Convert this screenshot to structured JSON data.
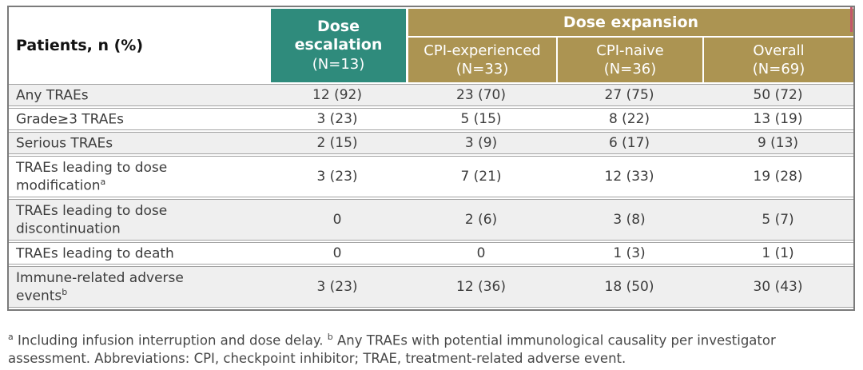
{
  "chart_data": {
    "type": "table",
    "corner_header": "Patients, n (%)",
    "group_header": "Dose expansion",
    "columns": [
      {
        "label": "Dose escalation",
        "n": "(N=13)",
        "group": null
      },
      {
        "label": "CPI-experienced",
        "n": "(N=33)",
        "group": "Dose expansion"
      },
      {
        "label": "CPI-naive",
        "n": "(N=36)",
        "group": "Dose expansion"
      },
      {
        "label": "Overall",
        "n": "(N=69)",
        "group": "Dose expansion"
      }
    ],
    "rows": [
      {
        "label": "Any TRAEs",
        "values": [
          "12 (92)",
          "23 (70)",
          "27 (75)",
          "50 (72)"
        ]
      },
      {
        "label": "Grade≥3 TRAEs",
        "values": [
          "3 (23)",
          "5 (15)",
          "8 (22)",
          "13 (19)"
        ]
      },
      {
        "label": "Serious TRAEs",
        "values": [
          "2 (15)",
          "3 (9)",
          "6 (17)",
          "9 (13)"
        ]
      },
      {
        "label": "TRAEs leading to dose modification",
        "sup": "a",
        "values": [
          "3 (23)",
          "7 (21)",
          "12 (33)",
          "19 (28)"
        ]
      },
      {
        "label": "TRAEs leading to dose discontinuation",
        "values": [
          "0",
          "2 (6)",
          "3 (8)",
          "5 (7)"
        ]
      },
      {
        "label": "TRAEs leading to death",
        "values": [
          "0",
          "0",
          "1 (3)",
          "1 (1)"
        ]
      },
      {
        "label": "Immune-related adverse events",
        "sup": "b",
        "values": [
          "3 (23)",
          "12 (36)",
          "18 (50)",
          "30 (43)"
        ]
      }
    ]
  },
  "footnote": {
    "sup_a": "a",
    "text_a": "Including infusion interruption and dose delay.",
    "sup_b": "b",
    "text_b": "Any TRAEs with potential immunological causality per investigator assessment. Abbreviations: CPI, checkpoint inhibitor; TRAE, treatment-related adverse event."
  },
  "colors": {
    "escalation_header": "#2F8B7C",
    "expansion_header": "#AC9452",
    "row_alt": "#EFEFEF",
    "row_border": "#A2A2A2",
    "outer_border": "#7B7B7B",
    "accent_sliver": "#C4566B"
  }
}
